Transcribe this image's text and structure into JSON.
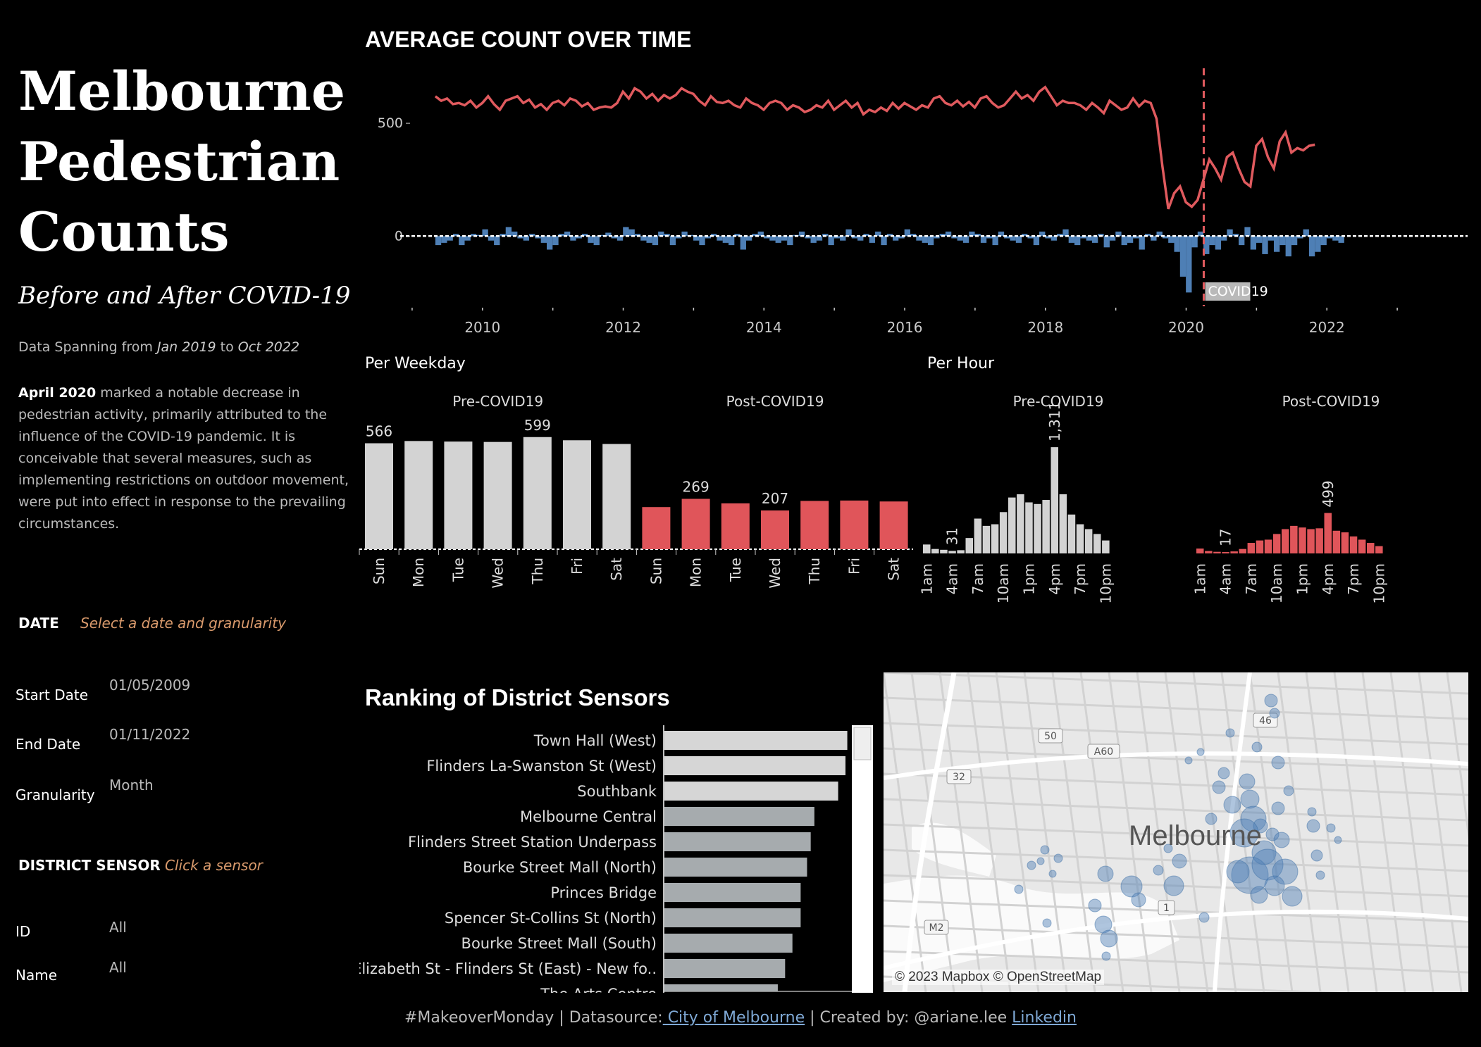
{
  "header": {
    "title_lines": [
      "Melbourne",
      "Pedestrian",
      "Counts"
    ],
    "subtitle": "Before and After COVID-19",
    "span_prefix": "Data Spanning from",
    "span_start": "Jan 2019",
    "span_to": "to",
    "span_end": "Oct 2022",
    "desc_bold": "April 2020",
    "desc_text": " marked a notable decrease in pedestrian activity, primarily attributed to the influence of the COVID-19 pandemic. It is conceivable that several measures, such as implementing restrictions on outdoor movement, were put into effect in response to the prevailing circumstances."
  },
  "filters": {
    "date_label": "DATE",
    "date_hint": "Select a date and granularity",
    "start_label": "Start Date",
    "start_value": "01/05/2009",
    "end_label": "End Date",
    "end_value": "01/11/2022",
    "gran_label": "Granularity",
    "gran_value": "Month",
    "sensor_label": "DISTRICT SENSOR",
    "sensor_hint": "Click a sensor",
    "id_label": "ID",
    "id_value": "All",
    "name_label": "Name",
    "name_value": "All"
  },
  "colors": {
    "pre": "#d3d3d3",
    "post": "#e0555a",
    "diff": "#4e7fb5",
    "line": "#e05a5e",
    "rank_top": "#d6d6d6",
    "rank": "#a6abae"
  },
  "chart_data": [
    {
      "type": "line",
      "title": "AVERAGE COUNT OVER TIME",
      "x_ticks": [
        "2010",
        "2012",
        "2014",
        "2016",
        "2018",
        "2020",
        "2022"
      ],
      "y_ticks": [
        "500",
        "0"
      ],
      "ylim": [
        -280,
        750
      ],
      "annotation": "COVID19",
      "annotation_x": 2020.25,
      "series": [
        {
          "kind": "line",
          "x_start": 2009.33,
          "x_step": 0.08333,
          "values": [
            620,
            600,
            610,
            585,
            590,
            580,
            600,
            570,
            590,
            620,
            585,
            560,
            600,
            610,
            620,
            590,
            605,
            570,
            585,
            560,
            590,
            600,
            580,
            610,
            600,
            575,
            590,
            560,
            570,
            575,
            570,
            590,
            640,
            610,
            655,
            640,
            610,
            630,
            600,
            625,
            610,
            625,
            655,
            640,
            630,
            600,
            580,
            620,
            595,
            590,
            600,
            580,
            570,
            610,
            590,
            580,
            560,
            590,
            600,
            590,
            560,
            580,
            570,
            550,
            560,
            580,
            570,
            600,
            560,
            580,
            600,
            570,
            590,
            540,
            560,
            550,
            570,
            555,
            590,
            565,
            590,
            575,
            560,
            580,
            570,
            610,
            620,
            590,
            580,
            600,
            575,
            595,
            570,
            610,
            620,
            590,
            570,
            580,
            610,
            640,
            610,
            625,
            600,
            640,
            660,
            620,
            580,
            600,
            590,
            590,
            580,
            560,
            590,
            570,
            545,
            600,
            580,
            560,
            570,
            610,
            575,
            600,
            590,
            520,
            310,
            120,
            190,
            220,
            150,
            130,
            160,
            250,
            340,
            300,
            250,
            350,
            370,
            300,
            240,
            220,
            400,
            430,
            350,
            300,
            420,
            460,
            370,
            390,
            380,
            400,
            405
          ]
        },
        {
          "kind": "bar",
          "x_start": 2009.33,
          "x_step": 0.08333,
          "values": [
            -40,
            -30,
            -20,
            10,
            -40,
            -20,
            10,
            5,
            30,
            -20,
            -40,
            10,
            40,
            20,
            -10,
            -20,
            10,
            -10,
            -30,
            -60,
            -40,
            10,
            20,
            -20,
            -10,
            10,
            -30,
            -40,
            5,
            15,
            -10,
            -20,
            40,
            30,
            10,
            -20,
            -30,
            -40,
            20,
            10,
            -40,
            -10,
            20,
            5,
            -20,
            -40,
            -10,
            10,
            -20,
            -30,
            -40,
            10,
            -60,
            -20,
            10,
            20,
            -10,
            -20,
            -30,
            -20,
            -40,
            5,
            20,
            -10,
            -30,
            -20,
            10,
            -40,
            -10,
            -20,
            30,
            -10,
            -20,
            10,
            -30,
            20,
            -40,
            10,
            -20,
            -10,
            30,
            10,
            -20,
            -30,
            -40,
            -10,
            10,
            20,
            -10,
            -20,
            -30,
            20,
            10,
            -30,
            -10,
            -40,
            20,
            -10,
            -20,
            -30,
            10,
            -10,
            -40,
            20,
            -10,
            -20,
            10,
            30,
            -30,
            -40,
            -10,
            -20,
            -30,
            10,
            -50,
            -20,
            20,
            -40,
            -30,
            -10,
            -60,
            10,
            -20,
            20,
            -10,
            -30,
            -70,
            -180,
            -250,
            -50,
            20,
            -80,
            -40,
            -60,
            -20,
            30,
            10,
            -40,
            40,
            -60,
            -30,
            -80,
            -20,
            -70,
            -40,
            -90,
            -40,
            -10,
            30,
            -90,
            -70,
            -40,
            -10,
            -20,
            -30
          ]
        }
      ]
    },
    {
      "type": "bar",
      "title": "Per Weekday",
      "groups": [
        "Pre-COVID19",
        "Post-COVID19"
      ],
      "categories": [
        "Sun",
        "Mon",
        "Tue",
        "Wed",
        "Thu",
        "Fri",
        "Sat"
      ],
      "series": [
        {
          "name": "Pre-COVID19",
          "values": [
            566,
            578,
            575,
            573,
            599,
            582,
            562
          ],
          "labels": {
            "0": "566",
            "4": "599"
          }
        },
        {
          "name": "Post-COVID19",
          "values": [
            225,
            269,
            245,
            207,
            258,
            260,
            255
          ],
          "labels": {
            "1": "269",
            "3": "207"
          }
        }
      ],
      "ylim": [
        0,
        650
      ]
    },
    {
      "type": "bar",
      "title": "Per Hour",
      "groups": [
        "Pre-COVID19",
        "Post-COVID19"
      ],
      "tick_labels": [
        "1am",
        "4am",
        "7am",
        "10am",
        "1pm",
        "4pm",
        "7pm",
        "10pm"
      ],
      "series": [
        {
          "name": "Pre-COVID19",
          "values": [
            110,
            55,
            45,
            31,
            40,
            190,
            430,
            340,
            360,
            510,
            690,
            730,
            630,
            610,
            660,
            1311,
            730,
            480,
            360,
            300,
            240,
            160
          ],
          "labels": {
            "3": "31",
            "15": "1,311"
          }
        },
        {
          "name": "Post-COVID19",
          "values": [
            60,
            30,
            20,
            17,
            25,
            55,
            130,
            160,
            170,
            240,
            300,
            340,
            320,
            300,
            310,
            499,
            280,
            260,
            210,
            170,
            130,
            90
          ],
          "labels": {
            "3": "17",
            "15": "499"
          }
        }
      ],
      "ylim": [
        0,
        1500
      ]
    },
    {
      "type": "bar",
      "title": "Ranking of District Sensors",
      "categories": [
        "Town Hall (West)",
        "Flinders La-Swanston St (West)",
        "Southbank",
        "Melbourne Central",
        "Flinders Street Station Underpass",
        "Bourke Street Mall (North)",
        "Princes Bridge",
        "Spencer St-Collins St (North)",
        "Bourke Street Mall (South)",
        "Elizabeth St - Flinders St (East) - New fo..",
        "The Arts Centre"
      ],
      "values": [
        1000,
        990,
        950,
        820,
        800,
        780,
        745,
        745,
        700,
        660,
        620
      ],
      "xlim": [
        0,
        1080
      ]
    }
  ],
  "map": {
    "label": "Melbourne",
    "attribution": "© 2023 Mapbox © OpenStreetMap",
    "roads": [
      "50",
      "A60",
      "46",
      "32",
      "1",
      "M2"
    ]
  },
  "footer": {
    "prefix": "#MakeoverMonday | Datasource:",
    "source_link": " City of Melbourne",
    "mid": " | Created by: @ariane.lee ",
    "linkedin": "Linkedin"
  }
}
